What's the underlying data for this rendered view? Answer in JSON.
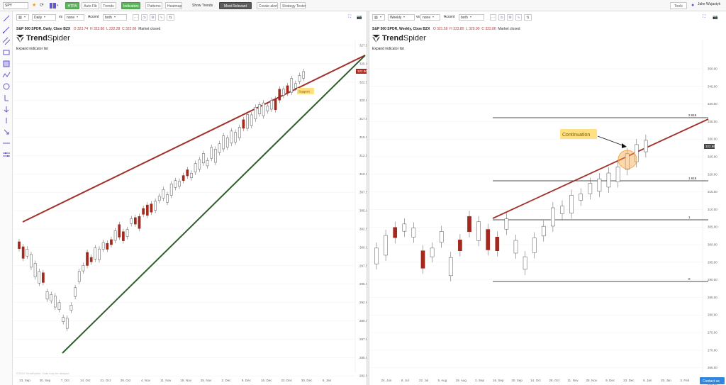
{
  "topbar": {
    "symbol": "SPY",
    "buttons": [
      "HTPA",
      "Auto Fib",
      "Trends",
      "Indicators",
      "Patterns",
      "Heatmap"
    ],
    "show_trends_label": "Show Trends",
    "trend_mode": "Most Relevant",
    "create_alert": "Create alert",
    "strategy_tester": "Strategy Tester",
    "tools_label": "Tools",
    "user_name": "Jake Wujastyk"
  },
  "sidebar": {
    "tools": [
      "line-tool-icon",
      "ray-tool-icon",
      "channel-tool-icon",
      "rectangle-tool-icon",
      "fib-tool-icon",
      "pattern-tool-icon",
      "cycle-tool-icon",
      "measure-tool-icon",
      "arrow-down-tool-icon",
      "cursor-tool-icon",
      "vertical-line-tool-icon",
      "horizontal-line-tool-icon",
      "parallel-lines-tool-icon"
    ]
  },
  "left_panel": {
    "interval": "Daily",
    "vs_label": "vs",
    "compare": "none",
    "accent_label": "Accent",
    "accent": "both",
    "title": "S&P 500 SPDR, Daily, Cboe BZX",
    "ohlc": {
      "o": "O 323.74",
      "h": "H 323.80",
      "l": "L 322.28",
      "c": "C 322.86"
    },
    "market_status": "Market closed",
    "logo_a": "Trend",
    "logo_b": "Spider",
    "expand_label": "Expand indicator list",
    "price_tag": "322.86",
    "support_label": "Support",
    "watermark": "©2019 TrendSpider. Data may be delayed",
    "y_ticks": [
      "327.50",
      "325.00",
      "322.50",
      "320.00",
      "317.50",
      "315.00",
      "312.50",
      "310.00",
      "307.50",
      "305.00",
      "302.50",
      "300.00",
      "297.50",
      "295.00",
      "292.50",
      "290.00",
      "287.50",
      "285.00",
      "282.50"
    ],
    "x_ticks": [
      "23. Sep",
      "30. Sep",
      "7. Oct",
      "14. Oct",
      "21. Oct",
      "28. Oct",
      "4. Nov",
      "11. Nov",
      "18. Nov",
      "25. Nov",
      "2. Dec",
      "9. Dec",
      "16. Dec",
      "23. Dec",
      "30. Dec",
      "6. Jan"
    ]
  },
  "right_panel": {
    "interval": "Weekly",
    "vs_label": "vs",
    "compare": "none",
    "accent_label": "Accent",
    "accent": "both",
    "title": "S&P 500 SPDR, Weekly, Cboe BZX",
    "ohlc": {
      "o": "O 321.59",
      "h": "H 323.80",
      "l": "L 320.90",
      "c": "C 322.86"
    },
    "market_status": "Market closed",
    "logo_a": "Trend",
    "logo_b": "Spider",
    "expand_label": "Expand indicator list",
    "price_tag": "322.86",
    "continuation_label": "Continuation",
    "fib_labels": [
      "2.618",
      "1.618",
      "1",
      "0"
    ],
    "contact_label": "Contact us",
    "y_ticks": [
      "350.00",
      "345.00",
      "340.00",
      "335.00",
      "330.00",
      "325.00",
      "320.00",
      "315.00",
      "310.00",
      "305.00",
      "300.00",
      "295.00",
      "290.00",
      "285.00",
      "280.00",
      "275.00",
      "270.00",
      "265.00",
      "260.00"
    ],
    "x_ticks": [
      "24. Jun",
      "8. Jul",
      "22. Jul",
      "5. Aug",
      "19. Aug",
      "2. Sep",
      "16. Sep",
      "30. Sep",
      "14. Oct",
      "28. Oct",
      "11. Nov",
      "25. Nov",
      "9. Dec",
      "23. Dec",
      "6. Jan",
      "20. Jan",
      "3. Feb"
    ]
  },
  "colors": {
    "bull_fill": "#ffffff",
    "bear_fill": "#a3291f",
    "candle_stroke": "#555555",
    "trend_red": "#a3302a",
    "trend_green": "#2e5e2a",
    "accent_green": "#5db45d",
    "highlight": "#f7a94a"
  }
}
